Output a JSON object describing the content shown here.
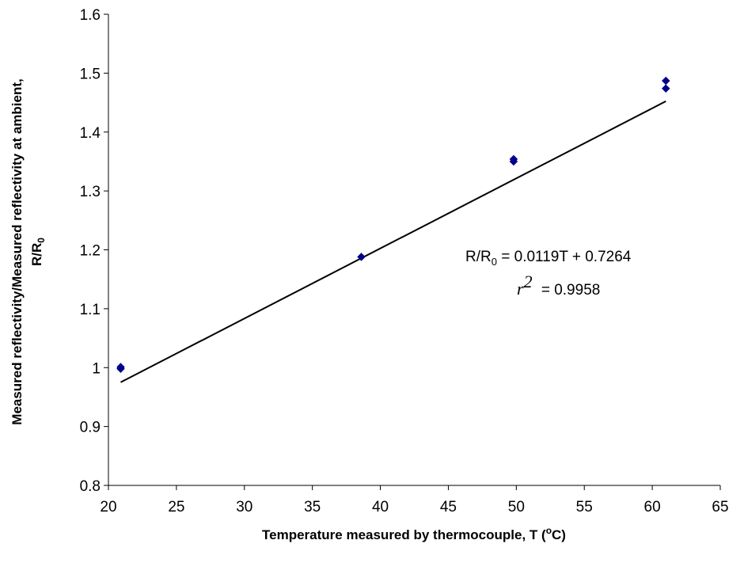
{
  "chart_data": {
    "type": "scatter",
    "title": "",
    "xlabel_pre": "Temperature measured by thermocouple, T (",
    "xlabel_sup": "o",
    "xlabel_post": "C)",
    "ylabel_line1": "Measured reflectivity/Measured reflectivity at ambient,",
    "ylabel_line2_pre": "R/R",
    "ylabel_line2_sub": "0",
    "xlim": [
      20,
      65
    ],
    "ylim": [
      0.8,
      1.6
    ],
    "xticks": [
      20,
      25,
      30,
      35,
      40,
      45,
      50,
      55,
      60,
      65
    ],
    "yticks": [
      0.8,
      0.9,
      1,
      1.1,
      1.2,
      1.3,
      1.4,
      1.5,
      1.6
    ],
    "ytick_labels": [
      "0.8",
      "0.9",
      "1",
      "1.1",
      "1.2",
      "1.3",
      "1.4",
      "1.5",
      "1.6"
    ],
    "grid": false,
    "series": [
      {
        "marker": "diamond",
        "color": "#00008B",
        "points": [
          {
            "x": 20.9,
            "y": 0.998
          },
          {
            "x": 20.9,
            "y": 1.001
          },
          {
            "x": 38.6,
            "y": 1.188
          },
          {
            "x": 49.8,
            "y": 1.35
          },
          {
            "x": 49.8,
            "y": 1.354
          },
          {
            "x": 61.0,
            "y": 1.474
          },
          {
            "x": 61.0,
            "y": 1.487
          }
        ]
      }
    ],
    "trendline": {
      "slope": 0.0119,
      "intercept": 0.7264,
      "x_range": [
        20.9,
        61.0
      ],
      "color": "#000000"
    },
    "annotations": {
      "equation_pre": "R/R",
      "equation_sub": "0",
      "equation_post": " = 0.0119T + 0.7264",
      "r2_symbol": "r",
      "r2_sup": "2",
      "r2_value": " = 0.9958"
    }
  }
}
